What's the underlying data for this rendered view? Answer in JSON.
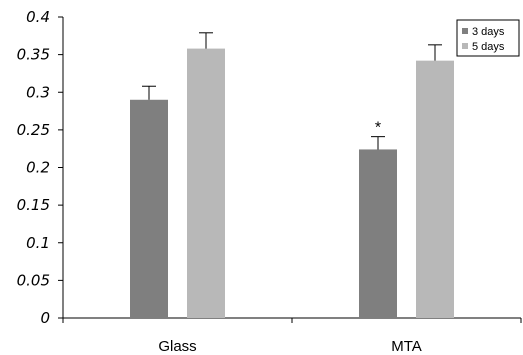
{
  "chart_data": {
    "type": "bar",
    "categories": [
      "Glass",
      "MTA"
    ],
    "series": [
      {
        "name": "3 days",
        "values": [
          0.29,
          0.224
        ],
        "errors": [
          0.018,
          0.017
        ],
        "color": "#7f7f7f"
      },
      {
        "name": "5 days",
        "values": [
          0.358,
          0.342
        ],
        "errors": [
          0.021,
          0.021
        ],
        "color": "#b8b8b8"
      }
    ],
    "ylim": [
      0,
      0.4
    ],
    "y_ticks": [
      "0",
      "0.05",
      "0.1",
      "0.15",
      "0.2",
      "0.25",
      "0.3",
      "0.35",
      "0.4"
    ],
    "xlabel": "",
    "ylabel": "",
    "title": "",
    "legend_position": "top-right",
    "grid": false,
    "annotations": [
      {
        "text": "*",
        "category": "MTA",
        "series": "3 days"
      }
    ]
  }
}
